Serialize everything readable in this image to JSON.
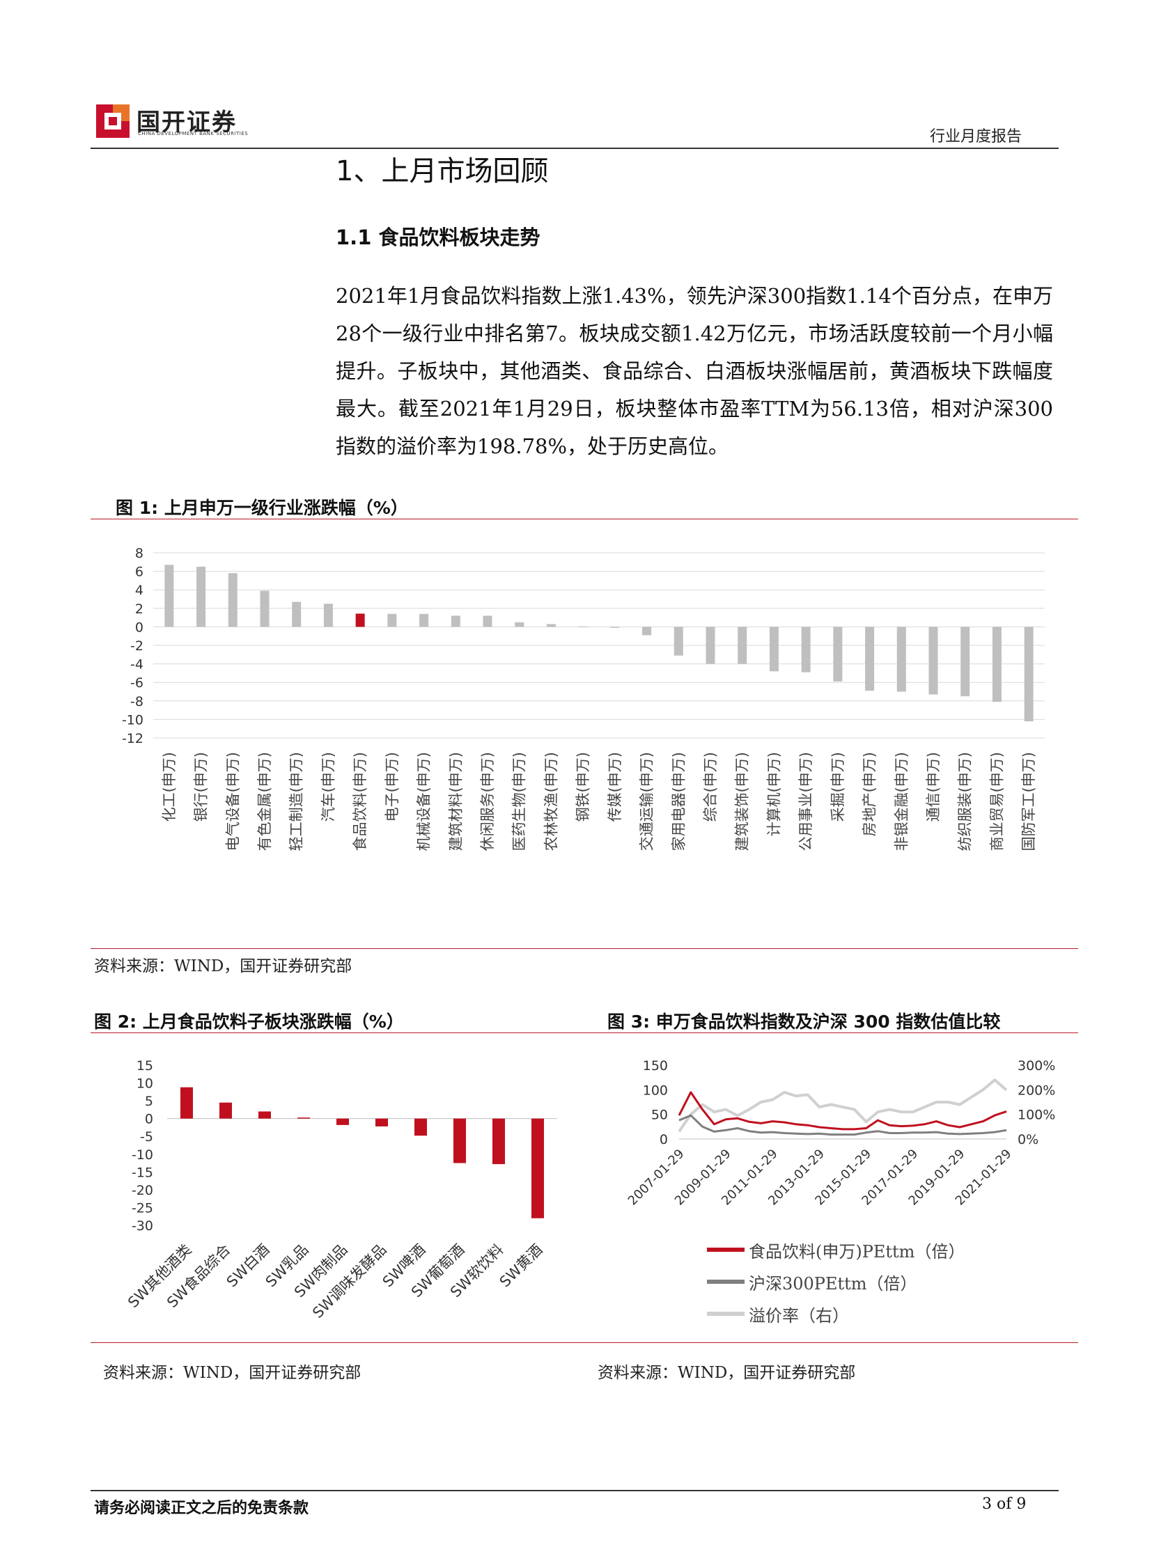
{
  "header": {
    "brand_name": "国开证券",
    "brand_sub": "CHINA DEVELOPMENT BANK SECURITIES",
    "report_type": "行业月度报告",
    "logo_colors": {
      "red": "#c8102e",
      "orange": "#e8742a"
    }
  },
  "section": {
    "h1": "1、上月市场回顾",
    "h2": "1.1 食品饮料板块走势",
    "paragraph": "2021年1月食品饮料指数上涨1.43%，领先沪深300指数1.14个百分点，在申万28个一级行业中排名第7。板块成交额1.42万亿元，市场活跃度较前一个月小幅提升。子板块中，其他酒类、食品综合、白酒板块涨幅居前，黄酒板块下跌幅度最大。截至2021年1月29日，板块整体市盈率TTM为56.13倍，相对沪深300指数的溢价率为198.78%，处于历史高位。"
  },
  "fig1": {
    "title": "图 1:  上月申万一级行业涨跌幅（%）",
    "source": "资料来源：WIND，国开证券研究部"
  },
  "fig2": {
    "title": "图 2:  上月食品饮料子板块涨跌幅（%）",
    "source": "资料来源：WIND，国开证券研究部"
  },
  "fig3": {
    "title": "图 3:  申万食品饮料指数及沪深 300 指数估值比较",
    "source": "资料来源：WIND，国开证券研究部",
    "legend": [
      "食品饮料(申万)PEttm（倍）",
      "沪深300PEttm（倍）",
      "溢价率（右）"
    ]
  },
  "footer": {
    "disclaimer": "请务必阅读正文之后的免责条款",
    "page": "3 of 9"
  },
  "colors": {
    "highlight": "#c0101f",
    "bar": "#bfbfbf",
    "grid": "#d9d9d9",
    "accent_rule": "#b8192a"
  },
  "chart_data": [
    {
      "type": "bar",
      "categories": [
        "化工(申万)",
        "银行(申万)",
        "电气设备(申万)",
        "有色金属(申万)",
        "轻工制造(申万)",
        "汽车(申万)",
        "食品饮料(申万)",
        "电子(申万)",
        "机械设备(申万)",
        "建筑材料(申万)",
        "休闲服务(申万)",
        "医药生物(申万)",
        "农林牧渔(申万)",
        "钢铁(申万)",
        "传媒(申万)",
        "交通运输(申万)",
        "家用电器(申万)",
        "综合(申万)",
        "建筑装饰(申万)",
        "计算机(申万)",
        "公用事业(申万)",
        "采掘(申万)",
        "房地产(申万)",
        "非银金融(申万)",
        "通信(申万)",
        "纺织服装(申万)",
        "商业贸易(申万)",
        "国防军工(申万)"
      ],
      "values": [
        6.7,
        6.5,
        5.8,
        3.9,
        2.7,
        2.5,
        1.43,
        1.4,
        1.4,
        1.2,
        1.2,
        0.5,
        0.3,
        0.05,
        -0.1,
        -0.9,
        -3.1,
        -4.0,
        -4.0,
        -4.8,
        -4.9,
        -5.9,
        -6.9,
        -7.0,
        -7.3,
        -7.5,
        -8.1,
        -10.2
      ],
      "highlight": "食品饮料(申万)",
      "ylim": [
        -12,
        8
      ],
      "yticks": [
        8,
        6,
        4,
        2,
        0,
        -2,
        -4,
        -6,
        -8,
        -10,
        -12
      ],
      "grid": true
    },
    {
      "type": "bar",
      "categories": [
        "SW其他酒类",
        "SW食品综合",
        "SW白酒",
        "SW乳品",
        "SW肉制品",
        "SW调味发酵品",
        "SW啤酒",
        "SW葡萄酒",
        "SW软饮料",
        "SW黄酒"
      ],
      "values": [
        8.8,
        4.5,
        2.0,
        0.3,
        -1.8,
        -2.2,
        -4.8,
        -12.5,
        -12.8,
        -28.0
      ],
      "ylim": [
        -30,
        15
      ],
      "yticks": [
        15,
        10,
        5,
        0,
        -5,
        -10,
        -15,
        -20,
        -25,
        -30
      ],
      "grid": false
    },
    {
      "type": "line",
      "x_ticks": [
        "2007-01-29",
        "2009-01-29",
        "2011-01-29",
        "2013-01-29",
        "2015-01-29",
        "2017-01-29",
        "2019-01-29",
        "2021-01-29"
      ],
      "ylim": [
        0,
        150
      ],
      "yticks": [
        0,
        50,
        100,
        150
      ],
      "y2lim": [
        0,
        300
      ],
      "y2ticks": [
        "0%",
        "100%",
        "200%",
        "300%"
      ],
      "series": [
        {
          "name": "食品饮料(申万)PEttm（倍）",
          "axis": "left",
          "color": "#c0101f",
          "x": [
            "2007-01",
            "2007-07",
            "2008-01",
            "2008-07",
            "2009-01",
            "2009-07",
            "2010-01",
            "2010-07",
            "2011-01",
            "2011-07",
            "2012-01",
            "2012-07",
            "2013-01",
            "2013-07",
            "2014-01",
            "2014-07",
            "2015-01",
            "2015-07",
            "2016-01",
            "2016-07",
            "2017-01",
            "2017-07",
            "2018-01",
            "2018-07",
            "2019-01",
            "2019-07",
            "2020-01",
            "2020-07",
            "2021-01"
          ],
          "values": [
            48,
            95,
            60,
            30,
            40,
            42,
            35,
            32,
            36,
            34,
            30,
            28,
            24,
            22,
            20,
            20,
            22,
            38,
            28,
            26,
            27,
            30,
            36,
            28,
            24,
            30,
            36,
            48,
            56
          ]
        },
        {
          "name": "沪深300PEttm（倍）",
          "axis": "left",
          "color": "#7f7f7f",
          "x": [
            "2007-01",
            "2007-07",
            "2008-01",
            "2008-07",
            "2009-01",
            "2009-07",
            "2010-01",
            "2010-07",
            "2011-01",
            "2011-07",
            "2012-01",
            "2012-07",
            "2013-01",
            "2013-07",
            "2014-01",
            "2014-07",
            "2015-01",
            "2015-07",
            "2016-01",
            "2016-07",
            "2017-01",
            "2017-07",
            "2018-01",
            "2018-07",
            "2019-01",
            "2019-07",
            "2020-01",
            "2020-07",
            "2021-01"
          ],
          "values": [
            38,
            48,
            25,
            15,
            18,
            22,
            16,
            13,
            14,
            12,
            11,
            10,
            11,
            9,
            9,
            9,
            13,
            16,
            12,
            12,
            13,
            13,
            14,
            11,
            10,
            11,
            12,
            14,
            18
          ]
        },
        {
          "name": "溢价率（右）",
          "axis": "right",
          "color": "#d0d0d0",
          "x": [
            "2007-01",
            "2007-07",
            "2008-01",
            "2008-07",
            "2009-01",
            "2009-07",
            "2010-01",
            "2010-07",
            "2011-01",
            "2011-07",
            "2012-01",
            "2012-07",
            "2013-01",
            "2013-07",
            "2014-01",
            "2014-07",
            "2015-01",
            "2015-07",
            "2016-01",
            "2016-07",
            "2017-01",
            "2017-07",
            "2018-01",
            "2018-07",
            "2019-01",
            "2019-07",
            "2020-01",
            "2020-07",
            "2021-01"
          ],
          "values": [
            30,
            100,
            140,
            110,
            120,
            95,
            120,
            150,
            160,
            190,
            175,
            180,
            130,
            140,
            130,
            120,
            70,
            110,
            120,
            110,
            110,
            130,
            150,
            150,
            140,
            170,
            200,
            240,
            199
          ]
        }
      ]
    }
  ]
}
